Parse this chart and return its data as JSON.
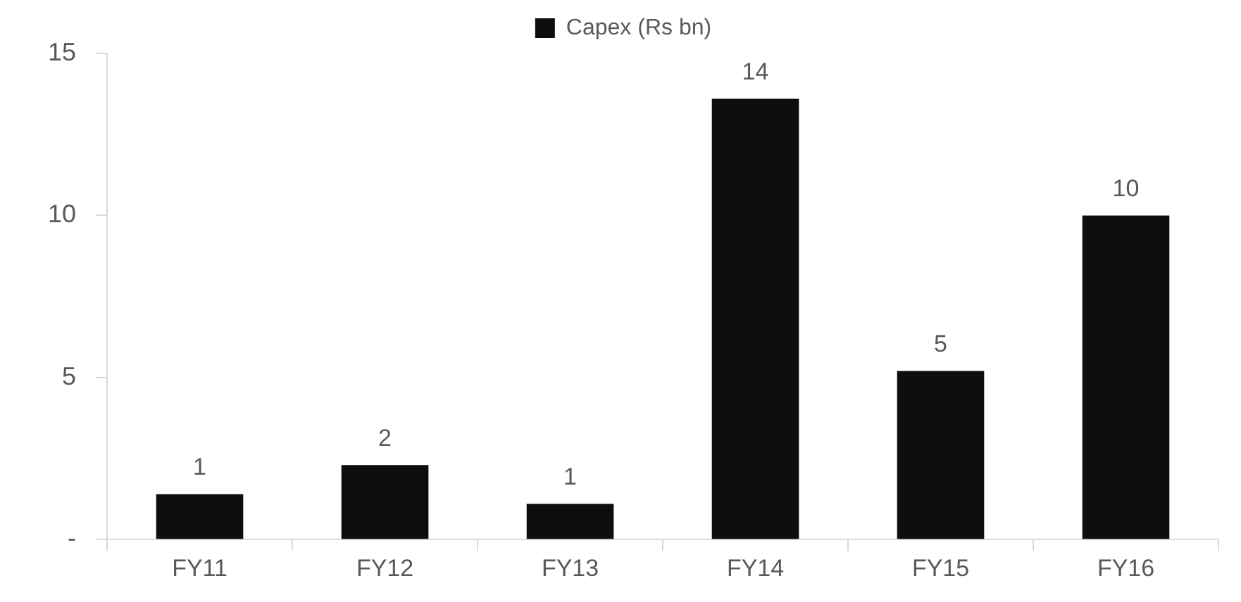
{
  "chart_data": {
    "type": "bar",
    "categories": [
      "FY11",
      "FY12",
      "FY13",
      "FY14",
      "FY15",
      "FY16"
    ],
    "series": [
      {
        "name": "Capex (Rs bn)",
        "color": "#0d0d0d",
        "values": [
          1.4,
          2.3,
          1.1,
          13.6,
          5.2,
          10.0
        ],
        "value_labels": [
          "1",
          "2",
          "1",
          "14",
          "5",
          "10"
        ]
      }
    ],
    "ylim": [
      0,
      15
    ],
    "yticks": [
      {
        "value": 0,
        "label": "-"
      },
      5,
      10,
      15
    ],
    "grid": false,
    "legend": "top"
  }
}
